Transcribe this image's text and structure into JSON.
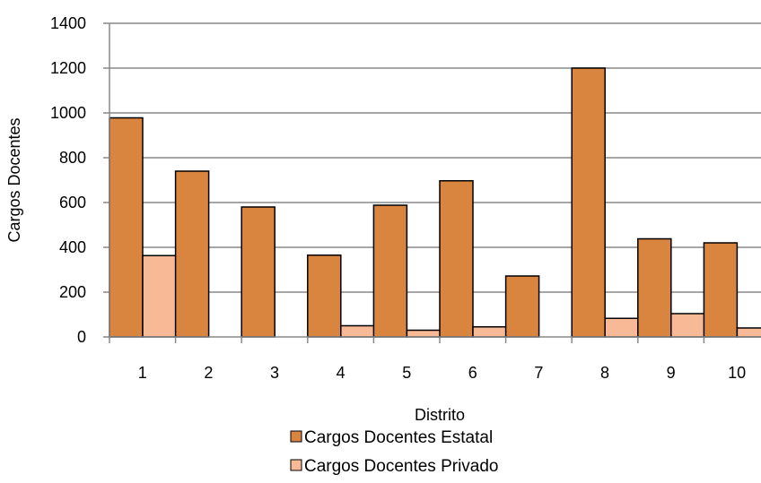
{
  "chart_data": {
    "type": "bar",
    "title": "",
    "xlabel": "Distrito",
    "ylabel": "Cargos Docentes",
    "ylim": [
      0,
      1400
    ],
    "yticks": [
      0,
      200,
      400,
      600,
      800,
      1000,
      1200,
      1400
    ],
    "categories": [
      "1",
      "2",
      "3",
      "4",
      "5",
      "6",
      "7",
      "8",
      "9",
      "10"
    ],
    "grid": true,
    "legend_position": "bottom",
    "series": [
      {
        "name": "Cargos Docentes Estatal",
        "color": "#d9843f",
        "values": [
          978,
          740,
          580,
          365,
          588,
          697,
          272,
          1200,
          438,
          420
        ]
      },
      {
        "name": "Cargos Docentes Privado",
        "color": "#f8b996",
        "values": [
          363,
          0,
          0,
          50,
          30,
          45,
          0,
          83,
          104,
          40
        ]
      }
    ]
  }
}
